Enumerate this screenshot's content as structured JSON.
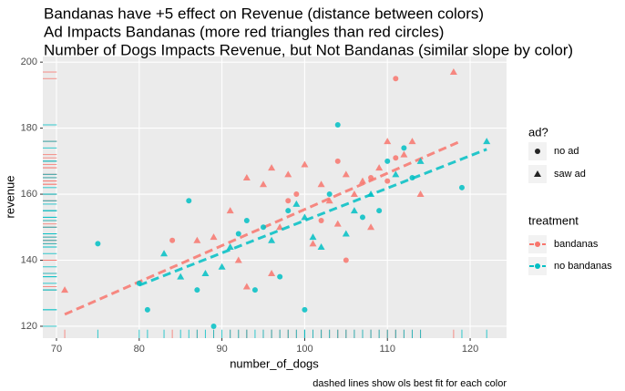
{
  "chart_data": {
    "type": "scatter",
    "title": [
      "Bandanas have +5 effect on Revenue (distance between colors)",
      "Ad Impacts Bandanas (more red triangles than red circles)",
      "Number of Dogs Impacts Revenue, but Not Bandanas (similar slope by color)"
    ],
    "x_label": "number_of_dogs",
    "y_label": "revenue",
    "caption": "dashed lines show ols best fit for each color",
    "xlim": [
      68.35,
      124.4
    ],
    "ylim": [
      116.4,
      201.7
    ],
    "xticks": [
      70,
      80,
      90,
      100,
      110,
      120
    ],
    "yticks": [
      120,
      140,
      160,
      180,
      200
    ],
    "grid": true,
    "shape_legend": {
      "title": "ad?",
      "entries": [
        "no ad",
        "saw ad"
      ]
    },
    "color_legend_title": "treatment",
    "series": [
      {
        "name": "bandanas",
        "color": "#F8766D",
        "x": [
          71,
          84,
          87,
          89,
          91,
          92,
          93,
          95,
          96,
          97,
          98,
          98,
          99,
          100,
          101,
          102,
          102,
          103,
          104,
          104,
          105,
          106,
          107,
          108,
          108,
          109,
          110,
          110,
          111,
          111,
          112,
          113,
          114,
          118,
          93,
          96,
          105
        ],
        "y": [
          131,
          146,
          146,
          147,
          155,
          140,
          165,
          163,
          168,
          150,
          166,
          158,
          160,
          169,
          145,
          152,
          163,
          158,
          151,
          170,
          166,
          160,
          164,
          165,
          150,
          168,
          176,
          164,
          195,
          171,
          172,
          176,
          160,
          197,
          132,
          136,
          140
        ],
        "ad": [
          "saw ad",
          "no ad",
          "saw ad",
          "saw ad",
          "saw ad",
          "saw ad",
          "saw ad",
          "saw ad",
          "saw ad",
          "saw ad",
          "saw ad",
          "no ad",
          "no ad",
          "saw ad",
          "saw ad",
          "no ad",
          "saw ad",
          "saw ad",
          "saw ad",
          "no ad",
          "saw ad",
          "saw ad",
          "saw ad",
          "no ad",
          "saw ad",
          "saw ad",
          "saw ad",
          "no ad",
          "no ad",
          "no ad",
          "saw ad",
          "saw ad",
          "saw ad",
          "saw ad",
          "saw ad",
          "saw ad",
          "no ad"
        ],
        "fit": {
          "x": [
            71,
            118.8
          ],
          "y": [
            123.6,
            176
          ]
        }
      },
      {
        "name": "no bandanas",
        "color": "#00BFC4",
        "x": [
          75,
          80,
          81,
          83,
          85,
          86,
          87,
          88,
          89,
          90,
          91,
          92,
          93,
          94,
          95,
          96,
          97,
          98,
          99,
          100,
          100,
          101,
          102,
          103,
          104,
          105,
          106,
          107,
          108,
          109,
          110,
          111,
          112,
          113,
          114,
          119,
          122
        ],
        "y": [
          145,
          133,
          125,
          142,
          135,
          158,
          131,
          136,
          120,
          138,
          144,
          148,
          152,
          131,
          150,
          146,
          135,
          155,
          157,
          153,
          125,
          147,
          144,
          160,
          181,
          148,
          155,
          153,
          160,
          155,
          170,
          166,
          174,
          165,
          170,
          162,
          176
        ],
        "ad": [
          "no ad",
          "no ad",
          "no ad",
          "saw ad",
          "saw ad",
          "no ad",
          "no ad",
          "saw ad",
          "no ad",
          "saw ad",
          "saw ad",
          "no ad",
          "no ad",
          "no ad",
          "no ad",
          "saw ad",
          "no ad",
          "no ad",
          "saw ad",
          "saw ad",
          "no ad",
          "saw ad",
          "saw ad",
          "no ad",
          "no ad",
          "saw ad",
          "saw ad",
          "no ad",
          "saw ad",
          "no ad",
          "no ad",
          "saw ad",
          "no ad",
          "no ad",
          "saw ad",
          "no ad",
          "saw ad"
        ],
        "fit": {
          "x": [
            80,
            122
          ],
          "y": [
            132.4,
            173.6
          ]
        }
      }
    ]
  }
}
